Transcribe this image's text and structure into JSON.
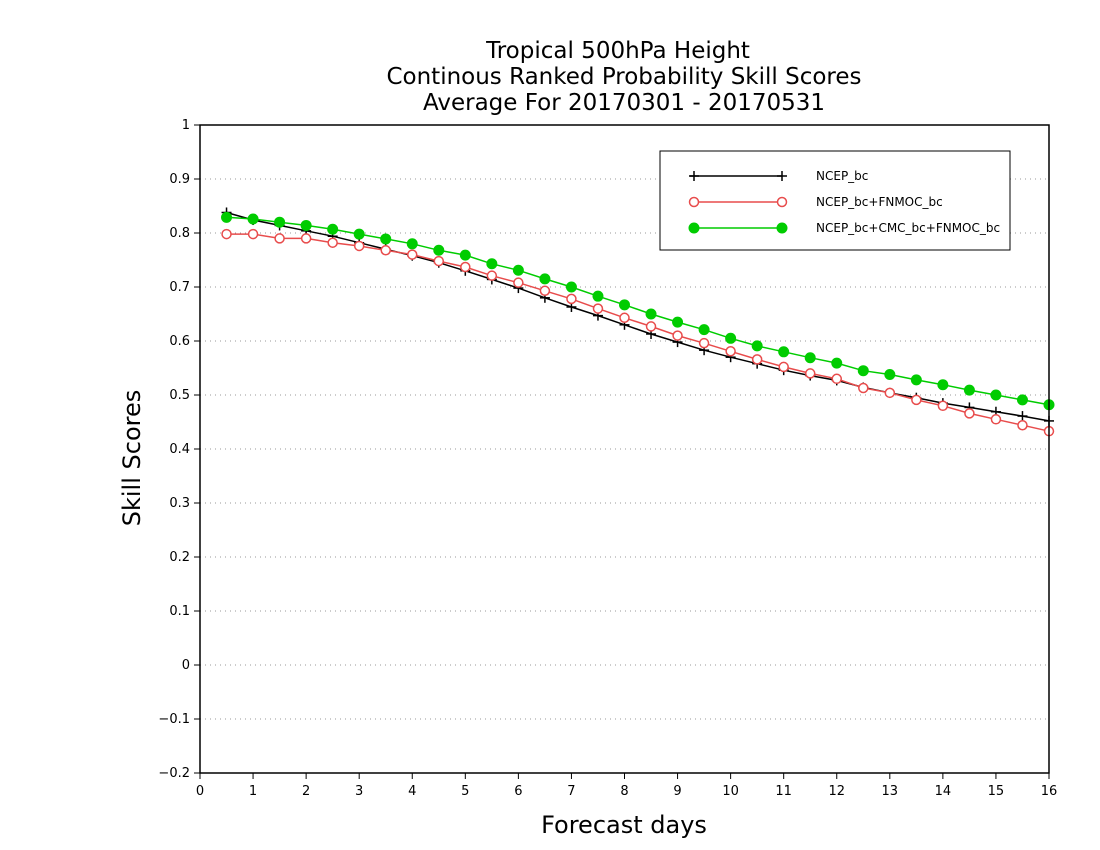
{
  "chart_data": {
    "type": "line",
    "title": [
      "Tropical 500hPa Height",
      "Continous Ranked Probability Skill Scores",
      "Average For 20170301 - 20170531"
    ],
    "xlabel": "Forecast days",
    "ylabel": "Skill Scores",
    "xlim": [
      0,
      16
    ],
    "ylim": [
      -0.2,
      1
    ],
    "xticks": [
      "0",
      "1",
      "2",
      "3",
      "4",
      "5",
      "6",
      "7",
      "8",
      "9",
      "10",
      "11",
      "12",
      "13",
      "14",
      "15",
      "16"
    ],
    "yticks": [
      "-0.2",
      "-0.1",
      "0",
      "0.1",
      "0.2",
      "0.3",
      "0.4",
      "0.5",
      "0.6",
      "0.7",
      "0.8",
      "0.9",
      "1"
    ],
    "grid": "horizontal-dotted",
    "legend_position": "top-right",
    "x": [
      0.5,
      1,
      1.5,
      2,
      2.5,
      3,
      3.5,
      4,
      4.5,
      5,
      5.5,
      6,
      6.5,
      7,
      7.5,
      8,
      8.5,
      9,
      9.5,
      10,
      10.5,
      11,
      11.5,
      12,
      12.5,
      13,
      13.5,
      14,
      14.5,
      15,
      15.5,
      16
    ],
    "series": [
      {
        "name": "NCEP_bc",
        "color": "#000000",
        "marker": "plus",
        "values": [
          0.838,
          0.824,
          0.814,
          0.804,
          0.794,
          0.782,
          0.77,
          0.758,
          0.745,
          0.73,
          0.714,
          0.698,
          0.68,
          0.663,
          0.647,
          0.63,
          0.613,
          0.598,
          0.583,
          0.57,
          0.558,
          0.546,
          0.536,
          0.527,
          0.514,
          0.504,
          0.495,
          0.485,
          0.477,
          0.469,
          0.461,
          0.452
        ]
      },
      {
        "name": "NCEP_bc+FNMOC_bc",
        "color": "#e84c4c",
        "marker": "open-circle",
        "values": [
          0.798,
          0.798,
          0.79,
          0.79,
          0.782,
          0.776,
          0.768,
          0.76,
          0.748,
          0.737,
          0.721,
          0.708,
          0.693,
          0.678,
          0.66,
          0.643,
          0.627,
          0.61,
          0.596,
          0.581,
          0.566,
          0.552,
          0.54,
          0.53,
          0.513,
          0.504,
          0.491,
          0.48,
          0.466,
          0.455,
          0.444,
          0.433
        ]
      },
      {
        "name": "NCEP_bc+CMC_bc+FNMOC_bc",
        "color": "#00cc00",
        "marker": "filled-circle",
        "values": [
          0.829,
          0.826,
          0.82,
          0.814,
          0.807,
          0.798,
          0.789,
          0.78,
          0.768,
          0.759,
          0.743,
          0.731,
          0.715,
          0.7,
          0.683,
          0.667,
          0.65,
          0.635,
          0.621,
          0.605,
          0.591,
          0.58,
          0.569,
          0.559,
          0.545,
          0.538,
          0.528,
          0.519,
          0.509,
          0.5,
          0.491,
          0.482
        ]
      }
    ]
  }
}
